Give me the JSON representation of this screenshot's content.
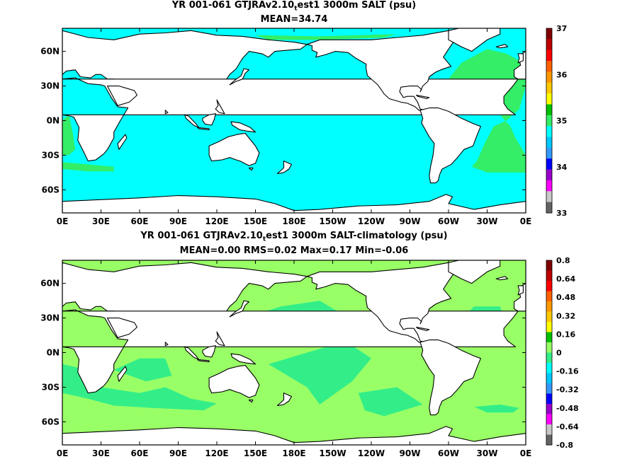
{
  "panels": [
    {
      "title_line1_pre": "YR 001-061 GTJRAv2.10",
      "title_line1_sub": "t",
      "title_line1_post": "est1 3000m SALT (psu)",
      "title_line2": "MEAN=34.74",
      "colorbar_labels": [
        "37",
        "36",
        "35",
        "34",
        "33"
      ],
      "colorbar_colors": [
        "#800000",
        "#c00000",
        "#ff0000",
        "#ff6000",
        "#ff9900",
        "#ffc800",
        "#ffff00",
        "#00c000",
        "#33ee66",
        "#00ffff",
        "#00c8ff",
        "#3399ff",
        "#0000ff",
        "#9900cc",
        "#ff00ff",
        "#c8c8c8",
        "#646464"
      ],
      "fill_colors": {
        "dominant": "#00ffff",
        "secondary": "#33ee66",
        "land": "#ffffff"
      }
    },
    {
      "title_line1_pre": "YR 001-061 GTJRAv2.10",
      "title_line1_sub": "t",
      "title_line1_post": "est1 3000m SALT-climatology (psu)",
      "title_line2": "MEAN=0.00   RMS=0.02   Max=0.17   Min=-0.06",
      "colorbar_labels": [
        "0.8",
        "0.64",
        "0.48",
        "0.32",
        "0.16",
        "0",
        "-0.16",
        "-0.32",
        "-0.48",
        "-0.64",
        "-0.8"
      ],
      "colorbar_colors": [
        "#800000",
        "#c00000",
        "#ff0000",
        "#ff6000",
        "#ff9900",
        "#ffc800",
        "#ffff00",
        "#00c000",
        "#99ff66",
        "#33ee88",
        "#00ffff",
        "#00c8ff",
        "#3399ff",
        "#0000ff",
        "#9900cc",
        "#ff00ff",
        "#c8c8c8",
        "#646464"
      ],
      "fill_colors": {
        "dominant": "#99ff66",
        "secondary": "#33ee88",
        "land": "#ffffff"
      }
    }
  ],
  "lon_ticks": [
    "0E",
    "30E",
    "60E",
    "90E",
    "120E",
    "150E",
    "180E",
    "150W",
    "120W",
    "90W",
    "60W",
    "30W",
    "0E"
  ],
  "lat_ticks": [
    "60N",
    "30N",
    "0N",
    "30S",
    "60S"
  ]
}
